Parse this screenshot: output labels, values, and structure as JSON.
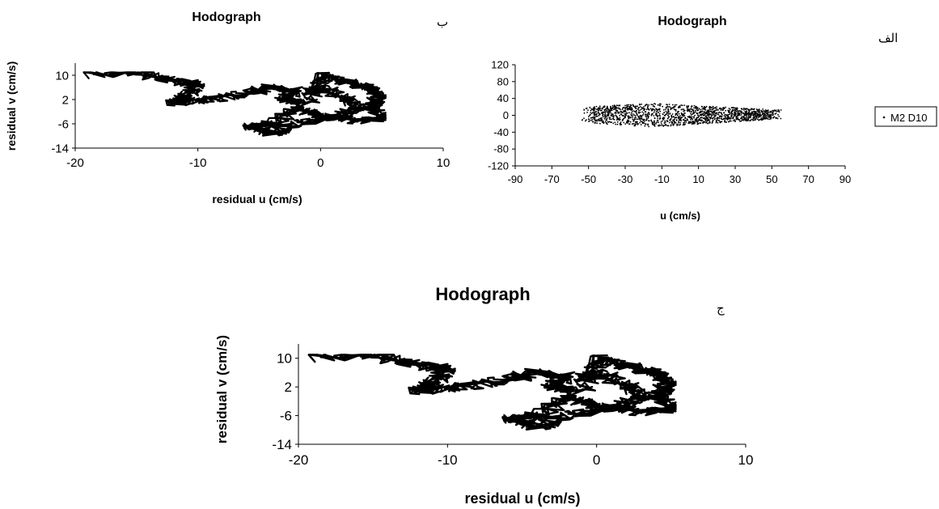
{
  "panel_labels": {
    "a": "الف",
    "b": "ب",
    "c": "ج"
  },
  "chart_data": [
    {
      "id": "b",
      "type": "line",
      "title": "Hodograph",
      "xlabel": "residual u (cm/s)",
      "ylabel": "residual v (cm/s)",
      "xlim": [
        -20,
        10
      ],
      "ylim": [
        -14,
        14
      ],
      "xticks": [
        "-20",
        "-10",
        "0",
        "10"
      ],
      "yticks": [
        "10",
        "2",
        "-6",
        "-14"
      ],
      "grid": false,
      "series": [
        {
          "x": [],
          "y": []
        }
      ]
    },
    {
      "id": "a",
      "type": "scatter",
      "title": "Hodograph",
      "xlabel": "u (cm/s)",
      "ylabel": "",
      "xlim": [
        -90,
        90
      ],
      "ylim": [
        -120,
        120
      ],
      "xticks": [
        "-90",
        "-70",
        "-50",
        "-30",
        "-10",
        "10",
        "30",
        "50",
        "70",
        "90"
      ],
      "yticks": [
        "120",
        "80",
        "40",
        "0",
        "-40",
        "-80",
        "-120"
      ],
      "grid": false,
      "legend": "right",
      "series": [
        {
          "name": "M2 D10",
          "x": [],
          "y": []
        }
      ]
    },
    {
      "id": "c",
      "type": "line",
      "title": "Hodograph",
      "xlabel": "residual u (cm/s)",
      "ylabel": "residual v (cm/s)",
      "xlim": [
        -20,
        10
      ],
      "ylim": [
        -14,
        14
      ],
      "xticks": [
        "-20",
        "-10",
        "0",
        "10"
      ],
      "yticks": [
        "10",
        "2",
        "-6",
        "-14"
      ],
      "grid": false,
      "series": [
        {
          "x": [],
          "y": []
        }
      ]
    }
  ]
}
